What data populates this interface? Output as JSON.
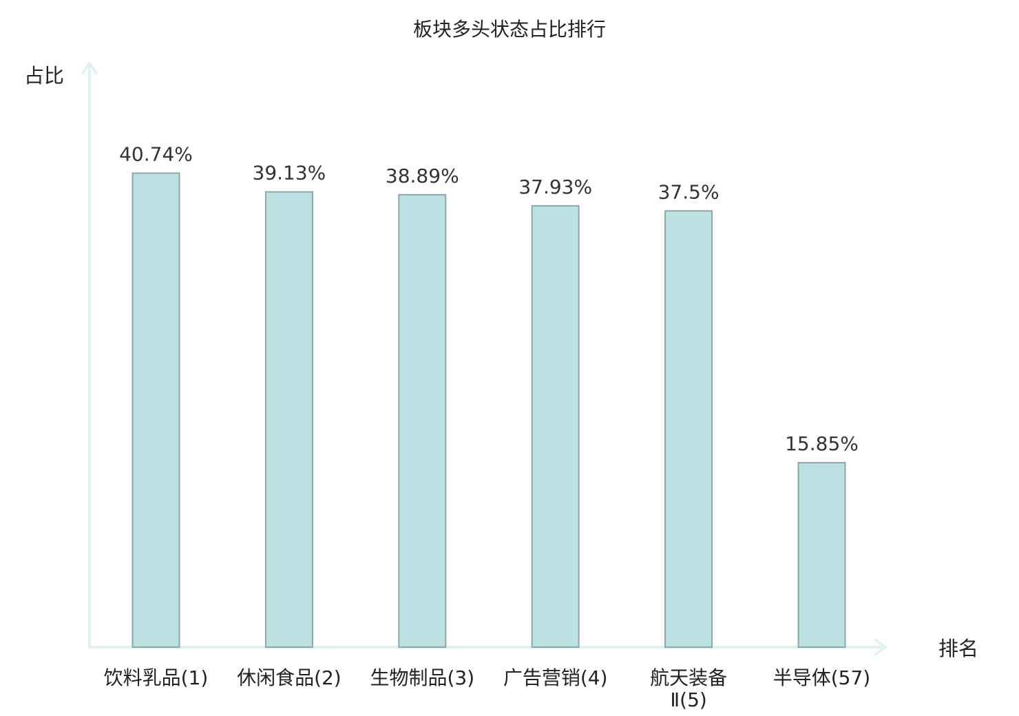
{
  "chart_data": {
    "type": "bar",
    "title": "板块多头状态占比排行",
    "xlabel": "排名",
    "ylabel": "占比",
    "categories": [
      [
        "饮料乳品(1)"
      ],
      [
        "休闲食品(2)"
      ],
      [
        "生物制品(3)"
      ],
      [
        "广告营销(4)"
      ],
      [
        "航天装备",
        "Ⅱ(5)"
      ],
      [
        "半导体(57)"
      ]
    ],
    "values": [
      40.74,
      39.13,
      38.89,
      37.93,
      37.5,
      15.85
    ],
    "value_labels": [
      "40.74%",
      "39.13%",
      "38.89%",
      "37.93%",
      "37.5%",
      "15.85%"
    ],
    "highlight_index": 5,
    "ylim": [
      0,
      50
    ],
    "grid": false,
    "legend": "none",
    "colors": {
      "bar_fill": "#bde1e3",
      "bar_stroke": "#8aa7a9",
      "axis": "#dff2f1",
      "highlight_text": "#e8000b"
    }
  }
}
